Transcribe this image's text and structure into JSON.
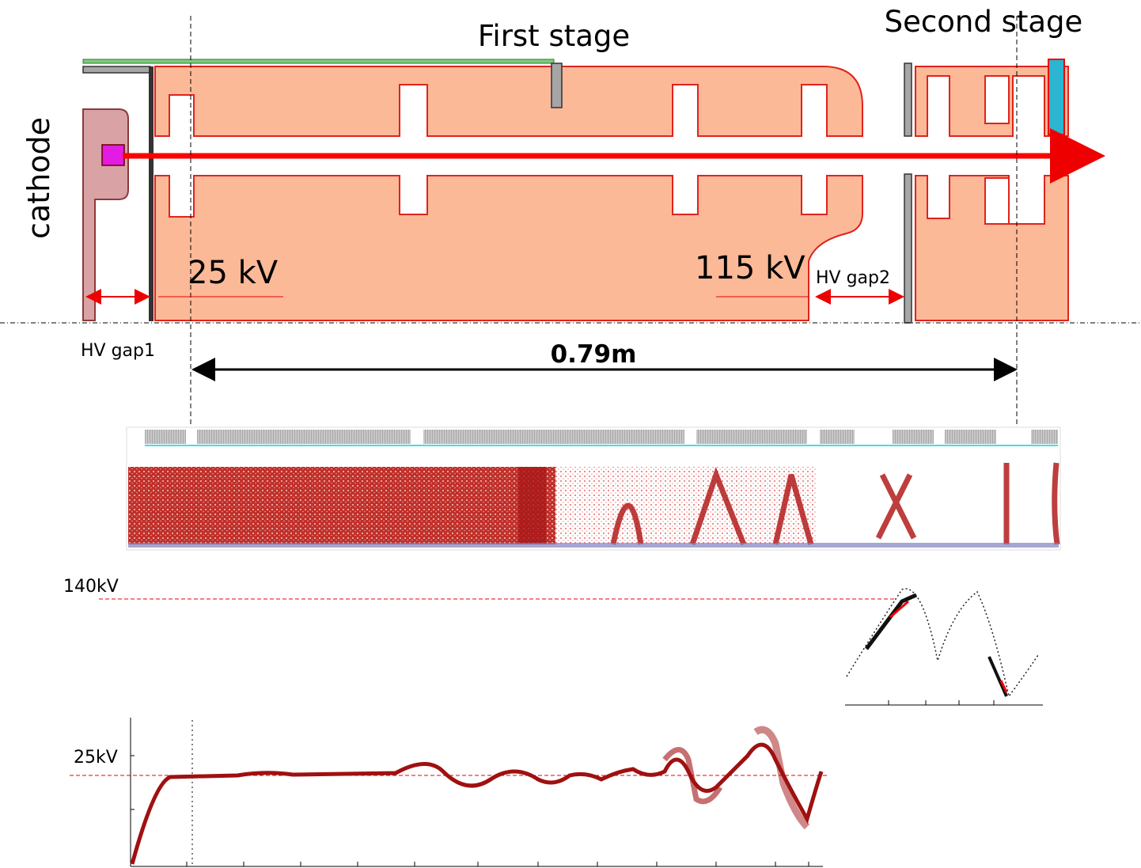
{
  "labels": {
    "first_stage": "First stage",
    "second_stage": "Second stage",
    "cathode": "cathode",
    "voltage_1": "25 kV",
    "voltage_2": "115 kV",
    "gap_2": "HV gap2",
    "gap_1": "HV gap1",
    "length": "0.79m"
  },
  "plots": {
    "upper_level": "140kV",
    "lower_level": "25kV"
  }
}
